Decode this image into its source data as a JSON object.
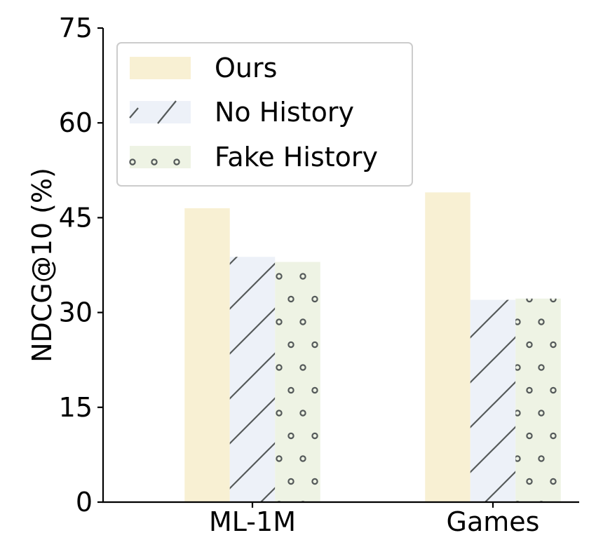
{
  "chart_data": {
    "type": "bar",
    "title": "",
    "xlabel": "",
    "ylabel": "NDCG@10 (%)",
    "categories": [
      "ML-1M",
      "Games"
    ],
    "ylim": [
      0,
      75
    ],
    "yticks": [
      0,
      15,
      30,
      45,
      60,
      75
    ],
    "grid": false,
    "legend_position": "top-left",
    "series": [
      {
        "name": "Ours",
        "values": [
          46.5,
          49.0
        ],
        "color": "#f8f0d3",
        "pattern": "solid"
      },
      {
        "name": "No History",
        "values": [
          38.8,
          32.0
        ],
        "color": "#edf1f8",
        "pattern": "diagonal-hatch"
      },
      {
        "name": "Fake History",
        "values": [
          38.0,
          32.2
        ],
        "color": "#eef3e4",
        "pattern": "circles"
      }
    ],
    "pattern_stroke_color": "#555a5a"
  }
}
